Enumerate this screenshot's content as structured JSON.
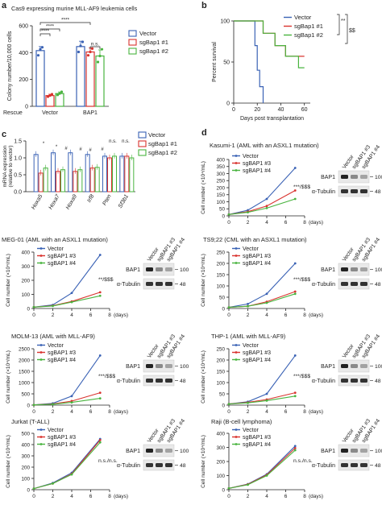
{
  "colors": {
    "vector": "#3a62b5",
    "sg1": "#d9332e",
    "sg2": "#49b43f",
    "sg4": "#49b43f",
    "axis": "#222222"
  },
  "panel_labels": [
    "a",
    "b",
    "c",
    "d"
  ],
  "chart_data": [
    {
      "id": "a",
      "type": "bar",
      "title": "Cas9 expressing murine MLL-AF9 leukemia cells",
      "ylabel": "Colony number/10,000 cells",
      "xlabel_prefix": "Rescue",
      "categories": [
        "Vector",
        "BAP1"
      ],
      "ylim": [
        0,
        600
      ],
      "yticks": [
        0,
        200,
        400,
        600
      ],
      "series": [
        {
          "name": "Vector",
          "values": [
            415,
            445
          ],
          "errors": [
            30,
            40
          ],
          "points": [
            [
              380,
              425,
              440
            ],
            [
              405,
              450,
              480
            ]
          ]
        },
        {
          "name": "sgBap1 #1",
          "values": [
            80,
            405
          ],
          "errors": [
            10,
            30
          ],
          "points": [
            [
              72,
              80,
              90
            ],
            [
              380,
              405,
              430
            ]
          ]
        },
        {
          "name": "sgBap1 #2",
          "values": [
            95,
            375
          ],
          "errors": [
            12,
            45
          ],
          "points": [
            [
              85,
              95,
              108
            ],
            [
              330,
              375,
              425
            ]
          ]
        }
      ],
      "annotations": [
        "****",
        "****",
        "****",
        "n.s."
      ]
    },
    {
      "id": "b",
      "type": "line",
      "xlabel": "Days post transplantation",
      "ylabel": "Percent survival",
      "xlim": [
        0,
        65
      ],
      "xticks": [
        0,
        20,
        40,
        60
      ],
      "ylim": [
        0,
        100
      ],
      "yticks": [
        0,
        50,
        100
      ],
      "series": [
        {
          "name": "Vector",
          "x": [
            0,
            18,
            18,
            20,
            20,
            22,
            22,
            25,
            25
          ],
          "y": [
            100,
            100,
            70,
            70,
            40,
            40,
            20,
            20,
            0
          ]
        },
        {
          "name": "sgBap1 #1",
          "x": [
            0,
            25,
            25,
            35,
            35,
            44,
            44,
            60
          ],
          "y": [
            100,
            100,
            85,
            85,
            70,
            70,
            57,
            57
          ]
        },
        {
          "name": "sgBap1 #2",
          "x": [
            0,
            25,
            25,
            35,
            35,
            44,
            44,
            55,
            55,
            60
          ],
          "y": [
            100,
            100,
            85,
            85,
            70,
            70,
            57,
            57,
            43,
            43
          ]
        }
      ],
      "annotations": [
        "**",
        "$$"
      ]
    },
    {
      "id": "c",
      "type": "bar",
      "ylabel": "mRNA expression\n(relative to vector)",
      "categories": [
        "Hoxa5",
        "Hoxa7",
        "Hoxa9",
        "Irf8",
        "Pten",
        "Sf3b1"
      ],
      "ylim": [
        0,
        1.5
      ],
      "yticks": [
        0,
        0.5,
        1.0,
        1.5
      ],
      "series": [
        {
          "name": "Vector",
          "values": [
            1.1,
            1.15,
            1.15,
            1.1,
            1.05,
            1.05
          ]
        },
        {
          "name": "sgBap1 #1",
          "values": [
            0.55,
            0.6,
            0.6,
            0.7,
            1.0,
            1.05
          ]
        },
        {
          "name": "sgBap1 #2",
          "values": [
            0.7,
            0.65,
            0.65,
            0.72,
            1.05,
            1.0
          ]
        }
      ],
      "annotations": [
        "*",
        "*",
        "#",
        "#",
        "#",
        "#",
        "n.s.",
        "n.s."
      ]
    },
    {
      "id": "d1",
      "type": "line",
      "title": "Kasumi-1 (AML with an ASXL1 mutation)",
      "ylabel": "Cell number (×10⁴/mL)",
      "xlabel": "(days)",
      "xlim": [
        0,
        8
      ],
      "xticks": [
        0,
        2,
        4,
        6,
        8
      ],
      "ylim": [
        0,
        400
      ],
      "yticks": [
        0,
        50,
        100,
        150,
        200,
        250,
        300,
        350,
        400
      ],
      "series": [
        {
          "name": "Vector",
          "x": [
            0,
            2,
            4,
            7
          ],
          "y": [
            10,
            40,
            120,
            340
          ]
        },
        {
          "name": "sgBAP1 #3",
          "x": [
            0,
            2,
            4,
            7
          ],
          "y": [
            10,
            30,
            70,
            180
          ]
        },
        {
          "name": "sgBAP1 #4",
          "x": [
            0,
            2,
            4,
            7
          ],
          "y": [
            10,
            25,
            55,
            120
          ]
        }
      ],
      "stat": "***/$$$",
      "blot": {
        "lanes": [
          "Vector",
          "sgBAP1 #3",
          "sgBAP1 #4"
        ],
        "rows": [
          "BAP1",
          "α-Tubulin"
        ],
        "markers": [
          "100",
          "48"
        ]
      }
    },
    {
      "id": "d2",
      "type": "line",
      "title": "MEG-01 (AML with an ASXL1 mutation)",
      "ylabel": "Cell number (×10⁴/mL)",
      "xlabel": "(days)",
      "xlim": [
        0,
        8
      ],
      "xticks": [
        0,
        2,
        4,
        6,
        8
      ],
      "ylim": [
        0,
        400
      ],
      "yticks": [
        0,
        100,
        200,
        300,
        400
      ],
      "series": [
        {
          "name": "Vector",
          "x": [
            0,
            2,
            4,
            7
          ],
          "y": [
            10,
            25,
            110,
            380
          ]
        },
        {
          "name": "sgBAP1 #3",
          "x": [
            0,
            2,
            4,
            7
          ],
          "y": [
            10,
            20,
            50,
            115
          ]
        },
        {
          "name": "sgBAP1 #4",
          "x": [
            0,
            2,
            4,
            7
          ],
          "y": [
            10,
            18,
            45,
            90
          ]
        }
      ],
      "stat": "**/$$$",
      "blot": {
        "lanes": [
          "Vector",
          "sgBAP1 #3",
          "sgBAP1 #4"
        ],
        "rows": [
          "BAP1",
          "α-Tubulin"
        ],
        "markers": [
          "100",
          "48"
        ]
      }
    },
    {
      "id": "d3",
      "type": "line",
      "title": "TS9;22 (CML with an ASXL1 mutation)",
      "ylabel": "Cell number (×10⁴/mL)",
      "xlabel": "(days)",
      "xlim": [
        0,
        8
      ],
      "xticks": [
        0,
        2,
        4,
        6,
        8
      ],
      "ylim": [
        0,
        250
      ],
      "yticks": [
        0,
        50,
        100,
        150,
        200,
        250
      ],
      "series": [
        {
          "name": "Vector",
          "x": [
            0,
            2,
            4,
            7
          ],
          "y": [
            5,
            20,
            65,
            200
          ]
        },
        {
          "name": "sgBAP1 #3",
          "x": [
            0,
            2,
            4,
            7
          ],
          "y": [
            5,
            10,
            30,
            75
          ]
        },
        {
          "name": "sgBAP1 #4",
          "x": [
            0,
            2,
            4,
            7
          ],
          "y": [
            5,
            10,
            25,
            65
          ]
        }
      ],
      "stat": "***/$$$",
      "blot": {
        "lanes": [
          "Vector",
          "sgBAP1 #3",
          "sgBAP1 #4"
        ],
        "rows": [
          "BAP1",
          "α-Tubulin"
        ],
        "markers": [
          "100",
          "48"
        ]
      }
    },
    {
      "id": "d4",
      "type": "line",
      "title": "MOLM-13 (AML with MLL-AF9)",
      "ylabel": "Cell number (×10⁴/mL)",
      "xlabel": "(days)",
      "xlim": [
        0,
        8
      ],
      "xticks": [
        0,
        2,
        4,
        6,
        8
      ],
      "ylim": [
        0,
        2500
      ],
      "yticks": [
        0,
        500,
        1000,
        1500,
        2000,
        2500
      ],
      "series": [
        {
          "name": "Vector",
          "x": [
            0,
            2,
            4,
            7
          ],
          "y": [
            10,
            80,
            400,
            2200
          ]
        },
        {
          "name": "sgBAP1 #3",
          "x": [
            0,
            2,
            4,
            7
          ],
          "y": [
            10,
            50,
            180,
            550
          ]
        },
        {
          "name": "sgBAP1 #4",
          "x": [
            0,
            2,
            4,
            7
          ],
          "y": [
            10,
            40,
            120,
            300
          ]
        }
      ],
      "stat": "***/$$$",
      "blot": {
        "lanes": [
          "Vector",
          "sgBAP1 #3",
          "sgBAP1 #4"
        ],
        "rows": [
          "BAP1",
          "α-Tubulin"
        ],
        "markers": [
          "100",
          "48"
        ]
      }
    },
    {
      "id": "d5",
      "type": "line",
      "title": "THP-1 (AML with MLL-AF9)",
      "ylabel": "Cell number (×10⁴/mL)",
      "xlabel": "(days)",
      "xlim": [
        0,
        8
      ],
      "xticks": [
        0,
        2,
        4,
        6,
        8
      ],
      "ylim": [
        0,
        250
      ],
      "yticks": [
        0,
        50,
        100,
        150,
        200,
        250
      ],
      "series": [
        {
          "name": "Vector",
          "x": [
            0,
            2,
            4,
            7
          ],
          "y": [
            5,
            15,
            50,
            220
          ]
        },
        {
          "name": "sgBAP1 #3",
          "x": [
            0,
            2,
            4,
            7
          ],
          "y": [
            5,
            12,
            25,
            55
          ]
        },
        {
          "name": "sgBAP1 #4",
          "x": [
            0,
            2,
            4,
            7
          ],
          "y": [
            5,
            10,
            20,
            40
          ]
        }
      ],
      "stat": "***/$$$",
      "blot": {
        "lanes": [
          "Vector",
          "sgBAP1 #3",
          "sgBAP1 #4"
        ],
        "rows": [
          "BAP1",
          "α-Tubulin"
        ],
        "markers": [
          "100",
          "48"
        ]
      }
    },
    {
      "id": "d6",
      "type": "line",
      "title": "Jurkat (T-ALL)",
      "ylabel": "Cell number (×10⁴/mL)",
      "xlabel": "(days)",
      "xlim": [
        0,
        8
      ],
      "xticks": [
        0,
        2,
        4,
        6,
        8
      ],
      "ylim": [
        0,
        500
      ],
      "yticks": [
        0,
        100,
        200,
        300,
        400,
        500
      ],
      "series": [
        {
          "name": "Vector",
          "x": [
            0,
            2,
            4,
            7
          ],
          "y": [
            10,
            60,
            150,
            450
          ]
        },
        {
          "name": "sgBAP1 #3",
          "x": [
            0,
            2,
            4,
            7
          ],
          "y": [
            10,
            55,
            140,
            440
          ]
        },
        {
          "name": "sgBAP1 #4",
          "x": [
            0,
            2,
            4,
            7
          ],
          "y": [
            10,
            55,
            135,
            420
          ]
        }
      ],
      "stat": "n.s./n.s.",
      "blot": {
        "lanes": [
          "Vector",
          "sgBAP1 #3",
          "sgBAP1 #4"
        ],
        "rows": [
          "BAP1",
          "α-Tubulin"
        ],
        "markers": [
          "100",
          "48"
        ]
      }
    },
    {
      "id": "d7",
      "type": "line",
      "title": "Raji (B-cell lymphoma)",
      "ylabel": "Cell number (×10⁴/mL)",
      "xlabel": "(days)",
      "xlim": [
        0,
        8
      ],
      "xticks": [
        0,
        2,
        4,
        6,
        8
      ],
      "ylim": [
        0,
        400
      ],
      "yticks": [
        0,
        100,
        200,
        300,
        400
      ],
      "series": [
        {
          "name": "Vector",
          "x": [
            0,
            2,
            4,
            7
          ],
          "y": [
            10,
            40,
            110,
            310
          ]
        },
        {
          "name": "sgBAP1 #3",
          "x": [
            0,
            2,
            4,
            7
          ],
          "y": [
            10,
            38,
            105,
            295
          ]
        },
        {
          "name": "sgBAP1 #4",
          "x": [
            0,
            2,
            4,
            7
          ],
          "y": [
            10,
            35,
            100,
            280
          ]
        }
      ],
      "stat": "n.s./n.s.",
      "blot": {
        "lanes": [
          "Vector",
          "sgBAP1 #3",
          "sgBAP1 #4"
        ],
        "rows": [
          "BAP1",
          "α-Tubulin"
        ],
        "markers": [
          "100",
          "48"
        ]
      }
    }
  ]
}
